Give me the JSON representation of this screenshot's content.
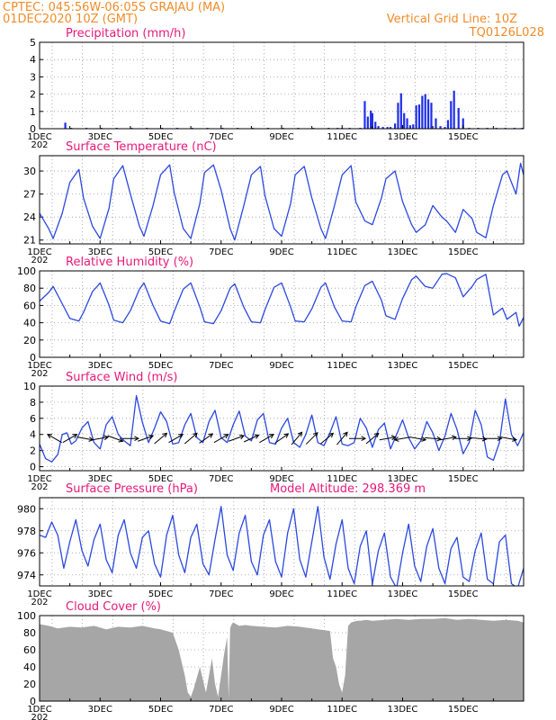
{
  "header": {
    "line1_left": "CPTEC:   045:56W-06:05S   GRAJAU (MA)",
    "line2_left": "01DEC2020 10Z (GMT)",
    "line1_right": "Vertical Grid Line: 10Z",
    "line2_right": "TQ0126L028"
  },
  "colors": {
    "header": "#f08c28",
    "panel_title": "#e6197a",
    "series_line": "#2b48e0",
    "bar": "#1f2ee8",
    "cloud": "#a6a6a6",
    "grid": "#9a9a9a"
  },
  "x_axis": {
    "tick_labels": [
      "1DEC",
      "3DEC",
      "5DEC",
      "7DEC",
      "9DEC",
      "11DEC",
      "13DEC",
      "15DEC"
    ],
    "first_label_suffix": "202"
  },
  "chart_data": [
    {
      "id": "precip",
      "type": "bar",
      "title": "Precipitation  (mm/h)",
      "ylim": [
        0,
        5
      ],
      "yticks": [
        0,
        1,
        2,
        3,
        4,
        5
      ],
      "grid": true,
      "x_units": "days since 01DEC2020 00Z",
      "x": [
        0.85,
        1.05,
        1.55,
        2.05,
        2.55,
        3.05,
        3.55,
        4.05,
        4.55,
        5.05,
        5.55,
        6.05,
        6.55,
        7.05,
        7.55,
        8.05,
        8.55,
        9.05,
        9.55,
        9.85,
        10.0,
        10.25,
        10.6,
        10.75,
        10.85,
        10.95,
        11.0,
        11.1,
        11.2,
        11.35,
        11.5,
        11.6,
        11.75,
        11.85,
        11.95,
        12.05,
        12.15,
        12.25,
        12.35,
        12.45,
        12.55,
        12.65,
        12.75,
        12.85,
        12.95,
        13.1,
        13.25,
        13.4,
        13.5,
        13.6,
        13.7,
        13.85,
        14.0,
        14.2,
        14.5,
        14.8,
        15.1,
        15.4,
        15.7,
        15.95
      ],
      "values": [
        0.35,
        0.05,
        0.05,
        0.05,
        0.05,
        0.05,
        0.05,
        0.05,
        0.05,
        0.05,
        0.05,
        0.05,
        0.05,
        0.05,
        0.05,
        0.05,
        0.05,
        0.05,
        0.05,
        0.05,
        0.05,
        0.05,
        0.05,
        1.6,
        0.7,
        1.05,
        0.9,
        0.4,
        0.15,
        0.1,
        0.1,
        0.1,
        0.3,
        1.5,
        2.05,
        0.9,
        0.6,
        0.2,
        0.25,
        1.35,
        1.4,
        1.9,
        2.0,
        1.7,
        1.5,
        0.6,
        0.15,
        0.1,
        0.5,
        1.6,
        2.2,
        1.2,
        0.6,
        0.05,
        0.05,
        0.05,
        0.05,
        0.05,
        0.05,
        0.05
      ]
    },
    {
      "id": "temp",
      "type": "line",
      "title": "Surface Temperature (nC)",
      "ylim": [
        20.5,
        32
      ],
      "yticks": [
        21,
        24,
        27,
        30
      ],
      "grid": true,
      "x_units": "days since 01DEC2020 00Z",
      "x": [
        0.0,
        0.3,
        0.45,
        0.75,
        1.0,
        1.3,
        1.45,
        1.75,
        2.0,
        2.3,
        2.45,
        2.75,
        3.0,
        3.3,
        3.45,
        3.75,
        4.0,
        4.3,
        4.45,
        4.75,
        5.0,
        5.3,
        5.45,
        5.75,
        6.0,
        6.3,
        6.45,
        6.75,
        7.0,
        7.3,
        7.45,
        7.75,
        8.0,
        8.3,
        8.45,
        8.75,
        9.0,
        9.3,
        9.45,
        9.75,
        10.0,
        10.3,
        10.45,
        10.75,
        11.0,
        11.3,
        11.45,
        11.75,
        12.0,
        12.3,
        12.45,
        12.75,
        13.0,
        13.3,
        13.45,
        13.75,
        14.0,
        14.3,
        14.45,
        14.75,
        15.0,
        15.3,
        15.45,
        15.75,
        15.9,
        16.0
      ],
      "values": [
        24.5,
        22.5,
        21.2,
        24.5,
        28.5,
        30.2,
        26.5,
        22.8,
        21.2,
        25.2,
        29.0,
        30.7,
        27.0,
        22.8,
        21.5,
        25.5,
        29.5,
        30.8,
        27.2,
        22.5,
        21.2,
        25.8,
        29.8,
        30.8,
        27.5,
        22.5,
        21.0,
        25.5,
        29.5,
        30.6,
        26.8,
        22.5,
        21.5,
        25.8,
        29.5,
        30.6,
        26.5,
        22.5,
        21.2,
        25.5,
        29.5,
        30.7,
        26.0,
        23.5,
        23.0,
        26.5,
        29.0,
        30.0,
        26.0,
        23.0,
        22.0,
        23.0,
        25.5,
        24.0,
        23.5,
        22.0,
        25.0,
        23.8,
        22.0,
        21.3,
        25.5,
        29.5,
        30.0,
        27.0,
        31.0,
        29.5
      ]
    },
    {
      "id": "rh",
      "type": "line",
      "title": "Relative Humidity  (%)",
      "ylim": [
        0,
        100
      ],
      "yticks": [
        0,
        20,
        40,
        60,
        80,
        100
      ],
      "grid": true,
      "x_units": "days since 01DEC2020 00Z",
      "x": [
        0.0,
        0.3,
        0.45,
        0.75,
        1.0,
        1.3,
        1.45,
        1.75,
        2.0,
        2.3,
        2.45,
        2.75,
        3.0,
        3.3,
        3.45,
        3.75,
        4.0,
        4.3,
        4.45,
        4.75,
        5.0,
        5.3,
        5.45,
        5.75,
        6.0,
        6.3,
        6.45,
        6.75,
        7.0,
        7.3,
        7.45,
        7.75,
        8.0,
        8.3,
        8.45,
        8.75,
        9.0,
        9.3,
        9.45,
        9.75,
        10.0,
        10.3,
        10.45,
        10.75,
        11.0,
        11.3,
        11.45,
        11.75,
        12.0,
        12.3,
        12.45,
        12.75,
        13.0,
        13.3,
        13.45,
        13.75,
        14.0,
        14.3,
        14.45,
        14.75,
        15.0,
        15.3,
        15.45,
        15.75,
        15.85,
        16.0
      ],
      "values": [
        65,
        75,
        82,
        62,
        45,
        42,
        52,
        76,
        86,
        60,
        43,
        40,
        54,
        79,
        86,
        60,
        42,
        39,
        53,
        79,
        86,
        58,
        41,
        39,
        54,
        80,
        85,
        58,
        41,
        40,
        55,
        81,
        86,
        58,
        42,
        41,
        56,
        81,
        86,
        58,
        42,
        41,
        58,
        83,
        88,
        66,
        48,
        44,
        68,
        90,
        94,
        82,
        80,
        96,
        97,
        92,
        70,
        82,
        90,
        96,
        49,
        57,
        44,
        52,
        36,
        46
      ]
    },
    {
      "id": "wind",
      "type": "line",
      "title": "Surface Wind  (m/s)",
      "ylim": [
        -0.5,
        10
      ],
      "yticks": [
        0,
        2,
        4,
        6,
        8,
        10
      ],
      "grid": true,
      "x_units": "days since 01DEC2020 00Z",
      "x": [
        0.0,
        0.2,
        0.4,
        0.6,
        0.75,
        0.9,
        1.05,
        1.2,
        1.4,
        1.6,
        1.8,
        2.0,
        2.2,
        2.4,
        2.6,
        2.8,
        3.0,
        3.2,
        3.4,
        3.6,
        3.8,
        4.0,
        4.2,
        4.4,
        4.6,
        4.8,
        5.0,
        5.2,
        5.4,
        5.6,
        5.8,
        6.0,
        6.2,
        6.4,
        6.6,
        6.8,
        7.0,
        7.2,
        7.4,
        7.6,
        7.8,
        8.0,
        8.2,
        8.4,
        8.6,
        8.8,
        9.0,
        9.2,
        9.4,
        9.6,
        9.8,
        10.0,
        10.2,
        10.4,
        10.6,
        10.8,
        11.0,
        11.2,
        11.4,
        11.6,
        11.8,
        12.0,
        12.2,
        12.4,
        12.6,
        12.8,
        13.0,
        13.2,
        13.4,
        13.6,
        13.8,
        14.0,
        14.2,
        14.4,
        14.6,
        14.8,
        15.0,
        15.2,
        15.4,
        15.6,
        15.8,
        16.0
      ],
      "values": [
        2.8,
        1.0,
        0.6,
        1.5,
        4.0,
        4.2,
        2.8,
        3.2,
        4.8,
        5.6,
        3.0,
        2.2,
        5.2,
        6.2,
        4.0,
        3.2,
        2.6,
        8.8,
        5.5,
        3.0,
        4.8,
        6.8,
        5.6,
        2.8,
        3.0,
        5.2,
        6.6,
        3.6,
        3.0,
        5.6,
        7.0,
        3.6,
        3.0,
        5.2,
        6.9,
        3.8,
        3.2,
        5.8,
        6.6,
        3.0,
        2.8,
        4.8,
        6.0,
        3.0,
        2.4,
        4.0,
        6.4,
        3.0,
        2.6,
        4.2,
        6.2,
        2.8,
        2.6,
        3.0,
        6.0,
        4.8,
        2.4,
        4.6,
        5.4,
        2.2,
        4.0,
        5.8,
        3.6,
        2.2,
        3.2,
        5.6,
        4.2,
        2.0,
        3.8,
        6.6,
        4.6,
        1.6,
        3.0,
        7.0,
        5.2,
        1.2,
        0.8,
        3.0,
        8.4,
        4.0,
        2.6,
        4.2
      ]
    },
    {
      "id": "pressure",
      "type": "line",
      "title": "Surface Pressure (hPa)",
      "annotation": "Model Altitude: 298.369  m",
      "ylim": [
        973,
        981
      ],
      "yticks": [
        974,
        976,
        978,
        980
      ],
      "grid": true,
      "x_units": "days since 01DEC2020 00Z",
      "x": [
        0.0,
        0.2,
        0.4,
        0.6,
        0.8,
        1.0,
        1.2,
        1.4,
        1.6,
        1.8,
        2.0,
        2.2,
        2.4,
        2.6,
        2.8,
        3.0,
        3.2,
        3.4,
        3.6,
        3.8,
        4.0,
        4.2,
        4.4,
        4.6,
        4.8,
        5.0,
        5.2,
        5.4,
        5.6,
        5.8,
        6.0,
        6.2,
        6.4,
        6.6,
        6.8,
        7.0,
        7.2,
        7.4,
        7.6,
        7.8,
        8.0,
        8.2,
        8.4,
        8.6,
        8.8,
        9.0,
        9.2,
        9.4,
        9.6,
        9.8,
        10.0,
        10.2,
        10.4,
        10.6,
        10.8,
        11.0,
        11.2,
        11.4,
        11.6,
        11.8,
        12.0,
        12.2,
        12.4,
        12.6,
        12.8,
        13.0,
        13.2,
        13.4,
        13.6,
        13.8,
        14.0,
        14.2,
        14.4,
        14.6,
        14.8,
        15.0,
        15.2,
        15.4,
        15.6,
        15.8,
        16.0
      ],
      "values": [
        977.6,
        977.4,
        978.8,
        977.6,
        974.6,
        977.0,
        979.0,
        976.2,
        974.8,
        977.2,
        978.6,
        975.4,
        974.2,
        977.6,
        979.0,
        976.0,
        974.6,
        977.4,
        978.0,
        975.0,
        973.8,
        977.6,
        979.4,
        975.8,
        974.2,
        977.4,
        978.6,
        975.0,
        974.0,
        977.2,
        980.2,
        975.8,
        974.4,
        977.8,
        979.4,
        975.2,
        974.0,
        977.6,
        979.0,
        975.2,
        973.8,
        977.8,
        980.0,
        975.4,
        973.8,
        977.0,
        980.2,
        975.6,
        973.6,
        976.8,
        979.0,
        974.6,
        973.2,
        976.6,
        978.0,
        973.2,
        976.2,
        977.8,
        973.8,
        972.8,
        976.0,
        978.6,
        974.8,
        973.4,
        976.6,
        978.2,
        974.6,
        973.2,
        976.4,
        977.4,
        973.8,
        973.4,
        976.2,
        977.8,
        973.6,
        973.2,
        977.0,
        977.6,
        973.2,
        972.8,
        974.6
      ]
    },
    {
      "id": "cloud",
      "type": "area",
      "title": "Cloud Cover  (%)",
      "ylim": [
        0,
        100
      ],
      "yticks": [
        0,
        20,
        40,
        60,
        80,
        100
      ],
      "grid": true,
      "x_units": "days since 01DEC2020 00Z",
      "x": [
        0.0,
        0.3,
        0.6,
        1.0,
        1.4,
        1.8,
        2.2,
        2.6,
        3.0,
        3.4,
        3.8,
        4.0,
        4.2,
        4.4,
        4.6,
        4.8,
        4.9,
        5.0,
        5.1,
        5.3,
        5.4,
        5.5,
        5.6,
        5.7,
        5.8,
        5.9,
        6.0,
        6.1,
        6.2,
        6.25,
        6.3,
        6.35,
        6.4,
        6.5,
        6.6,
        6.8,
        7.0,
        7.4,
        7.8,
        8.2,
        8.6,
        9.0,
        9.2,
        9.4,
        9.6,
        9.7,
        9.8,
        9.9,
        10.0,
        10.1,
        10.2,
        10.3,
        10.4,
        10.5,
        10.6,
        10.8,
        11.0,
        11.4,
        11.8,
        12.2,
        12.6,
        13.0,
        13.4,
        13.8,
        14.2,
        14.6,
        15.0,
        15.4,
        15.8,
        16.0
      ],
      "values": [
        90,
        88,
        85,
        87,
        86,
        88,
        84,
        87,
        86,
        88,
        85,
        84,
        82,
        80,
        60,
        30,
        10,
        5,
        15,
        40,
        25,
        10,
        30,
        50,
        20,
        5,
        30,
        55,
        75,
        3,
        85,
        90,
        92,
        90,
        88,
        89,
        88,
        87,
        86,
        88,
        87,
        85,
        84,
        83,
        82,
        50,
        40,
        20,
        10,
        30,
        88,
        92,
        93,
        94,
        94,
        95,
        94,
        95,
        96,
        95,
        96,
        96,
        97,
        95,
        96,
        95,
        94,
        95,
        94,
        92
      ]
    }
  ],
  "wind_arrows": {
    "x": [
      0.5,
      1.0,
      1.5,
      2.0,
      2.5,
      3.0,
      3.5,
      4.0,
      4.5,
      5.0,
      5.5,
      6.0,
      6.5,
      7.0,
      7.5,
      8.0,
      8.5,
      9.0,
      9.5,
      10.0,
      10.5,
      11.0,
      11.5,
      12.0,
      12.5,
      13.0,
      13.5,
      14.0,
      14.5,
      15.0,
      15.5
    ],
    "direction_deg": [
      300,
      60,
      100,
      80,
      110,
      90,
      70,
      50,
      60,
      50,
      55,
      60,
      70,
      65,
      60,
      55,
      40,
      45,
      50,
      40,
      90,
      50,
      80,
      260,
      100,
      95,
      80,
      90,
      95,
      90,
      100
    ]
  }
}
